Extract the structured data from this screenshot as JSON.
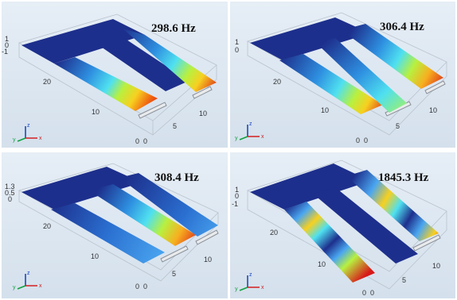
{
  "panels": [
    {
      "frequency": "298.6 Hz",
      "z_ticks": [
        "1",
        "0",
        "-1"
      ],
      "y_ticks": [
        "20",
        "10",
        "0"
      ],
      "x_ticks": [
        "0",
        "5",
        "10"
      ],
      "triad": {
        "z": "z",
        "y": "y",
        "x": "x"
      }
    },
    {
      "frequency": "306.4 Hz",
      "z_ticks": [
        "1",
        "0"
      ],
      "y_ticks": [
        "20",
        "10",
        "0"
      ],
      "x_ticks": [
        "0",
        "5",
        "10"
      ],
      "triad": {
        "z": "z",
        "y": "y",
        "x": "x"
      }
    },
    {
      "frequency": "308.4 Hz",
      "z_ticks": [
        "1.3",
        "0.5",
        "0"
      ],
      "y_ticks": [
        "20",
        "10",
        "0"
      ],
      "x_ticks": [
        "0",
        "5",
        "10"
      ],
      "triad": {
        "z": "z",
        "y": "y",
        "x": "x"
      }
    },
    {
      "frequency": "1845.3 Hz",
      "z_ticks": [
        "1",
        "0",
        "-1"
      ],
      "y_ticks": [
        "20",
        "10",
        "0"
      ],
      "x_ticks": [
        "0",
        "5",
        "10"
      ],
      "triad": {
        "z": "z",
        "y": "y",
        "x": "x"
      }
    }
  ],
  "colors": {
    "background": "#dfeaf4",
    "plate": "#1d2f8c",
    "hot": "#d81818",
    "frame": "#cfd3d8"
  }
}
